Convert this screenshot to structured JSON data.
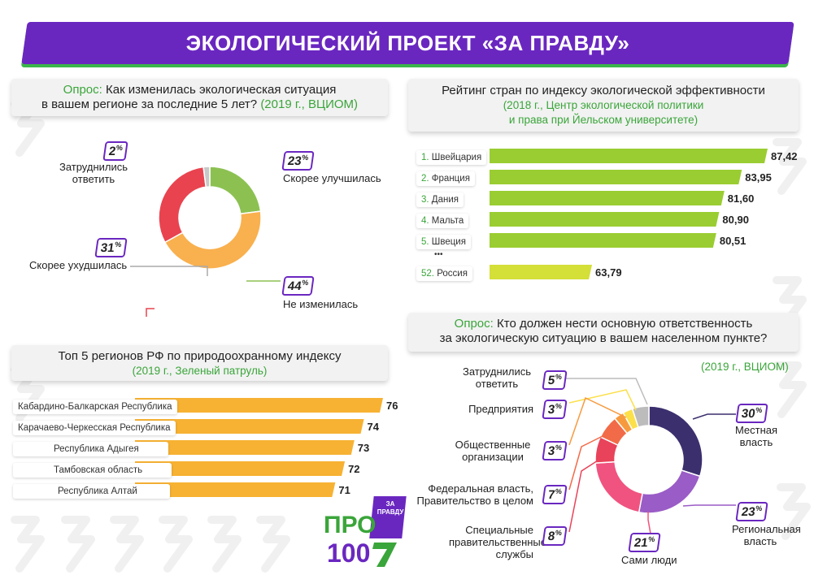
{
  "header": {
    "title": "ЭКОЛОГИЧЕСКИЙ ПРОЕКТ «ЗА ПРАВДУ»"
  },
  "colors": {
    "brand_purple": "#6a27c0",
    "brand_green": "#3aa53a",
    "orange_bar": "#f7b233",
    "yellow_green_bar": "#d4df38",
    "green_bar": "#9acd32"
  },
  "poll1": {
    "prefix": "Опрос:",
    "question_line1": "Как изменилась экологическая ситуация",
    "question_line2": "в вашем регионе за последние 5 лет?",
    "source": "(2019 г., ВЦИОМ)"
  },
  "ranking": {
    "title": "Рейтинг стран по индексу экологической эффективности",
    "source_line1": "(2018 г., Центр экологической политики",
    "source_line2": "и права при Йельском университете)",
    "ellipsis": "•••"
  },
  "regions": {
    "title": "Топ 5 регионов РФ по природоохранному индексу",
    "source": "(2019 г., Зеленый патруль)"
  },
  "poll2": {
    "prefix": "Опрос:",
    "question_line1": "Кто должен нести основную ответственность",
    "question_line2": "за экологическую ситуацию в вашем населенном пункте?",
    "source": "(2019 г., ВЦИОМ)"
  },
  "logo": {
    "main": "ПРО 100",
    "badge_line1": "ЗА",
    "badge_line2": "ПРАВДУ"
  },
  "chart_data": [
    {
      "type": "pie",
      "subtype": "donut",
      "categories": [
        "Скорее улучшилась",
        "Не изменилась",
        "Скорее ухудшилась",
        "Затруднились ответить"
      ],
      "values": [
        23,
        44,
        31,
        2
      ],
      "value_labels": [
        "23",
        "44",
        "31",
        "2"
      ],
      "unit": "%",
      "colors": [
        "#8cc152",
        "#f9b04e",
        "#e9434f",
        "#c8c8c8"
      ]
    },
    {
      "type": "bar",
      "orientation": "horizontal",
      "ranks": [
        "1.",
        "2.",
        "3.",
        "4.",
        "5.",
        "52."
      ],
      "categories": [
        "Швейцария",
        "Франция",
        "Дания",
        "Мальта",
        "Швеция",
        "Россия"
      ],
      "values": [
        87.42,
        83.95,
        81.6,
        80.9,
        80.51,
        63.79
      ],
      "value_labels": [
        "87,42",
        "83,95",
        "81,60",
        "80,90",
        "80,51",
        "63,79"
      ],
      "colors": [
        "#9acd32",
        "#9acd32",
        "#9acd32",
        "#9acd32",
        "#9acd32",
        "#d4df38"
      ]
    },
    {
      "type": "bar",
      "orientation": "horizontal",
      "categories": [
        "Кабардино-Балкарская Республика",
        "Карачаево-Черкесская Республика",
        "Республика Адыгея",
        "Тамбовская область",
        "Республика Алтай"
      ],
      "values": [
        76,
        74,
        73,
        72,
        71
      ],
      "value_labels": [
        "76",
        "74",
        "73",
        "72",
        "71"
      ],
      "color": "#f7b233"
    },
    {
      "type": "pie",
      "subtype": "donut",
      "categories": [
        "Местная власть",
        "Региональная власть",
        "Сами люди",
        "Специальные правительственные службы",
        "Федеральная власть, Правительство в целом",
        "Общественные организации",
        "Предприятия",
        "Затруднились ответить"
      ],
      "values": [
        30,
        23,
        21,
        8,
        7,
        3,
        3,
        5
      ],
      "value_labels": [
        "30",
        "23",
        "21",
        "8",
        "7",
        "3",
        "3",
        "5"
      ],
      "unit": "%",
      "colors": [
        "#3c2f6e",
        "#9a5cc6",
        "#f0537f",
        "#e8435a",
        "#f26b48",
        "#f79a3e",
        "#fbe04a",
        "#bcbcbc"
      ]
    }
  ]
}
